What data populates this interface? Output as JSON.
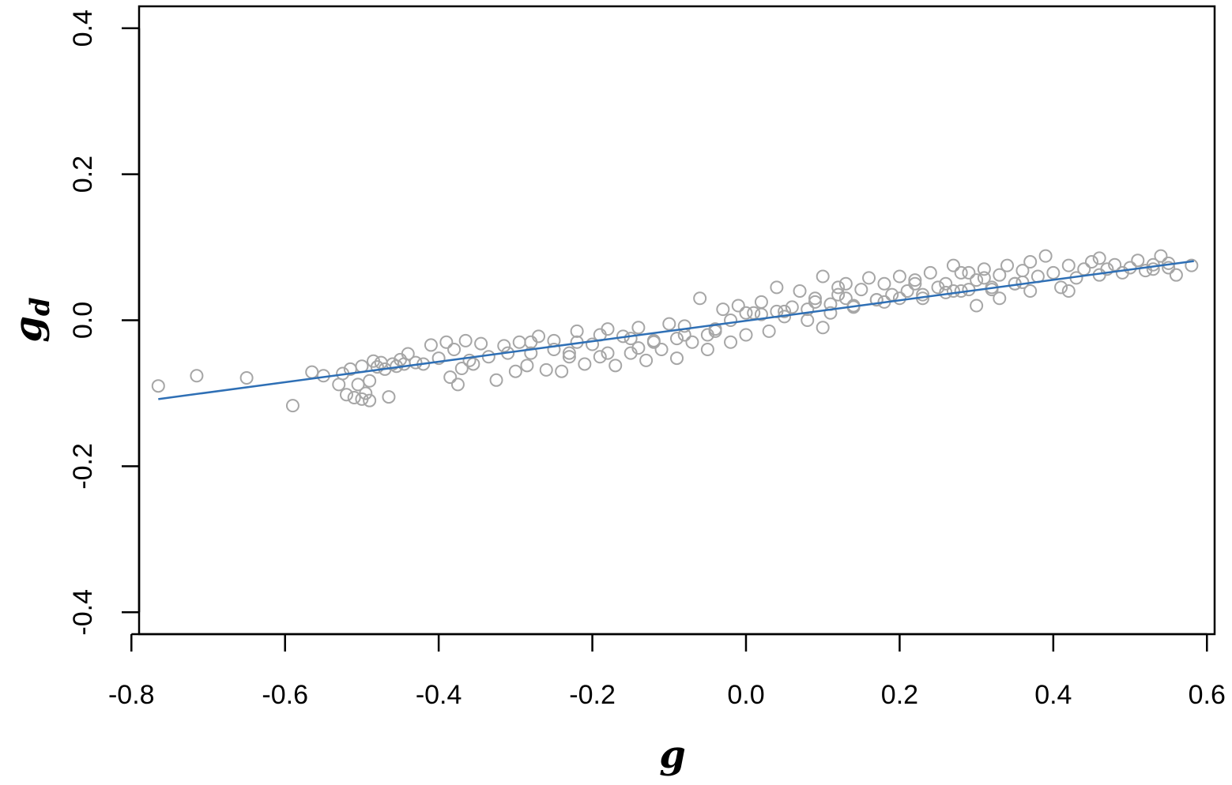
{
  "chart_data": {
    "type": "scatter",
    "title": "",
    "xlabel": "g",
    "ylabel_main": "g",
    "ylabel_sub": "d",
    "xlim": [
      -0.79,
      0.61
    ],
    "ylim": [
      -0.43,
      0.43
    ],
    "x_ticks": [
      -0.8,
      -0.6,
      -0.4,
      -0.2,
      0.0,
      0.2,
      0.4,
      0.6
    ],
    "x_tick_labels": [
      "-0.8",
      "-0.6",
      "-0.4",
      "-0.2",
      "0.0",
      "0.2",
      "0.4",
      "0.6"
    ],
    "y_ticks": [
      -0.4,
      -0.2,
      0.0,
      0.2,
      0.4
    ],
    "y_tick_labels": [
      "-0.4",
      "-0.2",
      "0.0",
      "0.2",
      "0.4"
    ],
    "grid": false,
    "legend": "none",
    "point_color": "#a6a6a6",
    "line_color": "#2e6fb5",
    "series": [
      {
        "kind": "points",
        "x": [
          -0.765,
          -0.715,
          -0.65,
          -0.59,
          -0.565,
          -0.55,
          -0.53,
          -0.525,
          -0.52,
          -0.515,
          -0.51,
          -0.505,
          -0.5,
          -0.5,
          -0.495,
          -0.49,
          -0.49,
          -0.485,
          -0.48,
          -0.475,
          -0.47,
          -0.465,
          -0.46,
          -0.455,
          -0.45,
          -0.445,
          -0.44,
          -0.43,
          -0.42,
          -0.41,
          -0.4,
          -0.39,
          -0.385,
          -0.38,
          -0.375,
          -0.37,
          -0.365,
          -0.36,
          -0.355,
          -0.345,
          -0.335,
          -0.325,
          -0.315,
          -0.31,
          -0.3,
          -0.295,
          -0.285,
          -0.28,
          -0.27,
          -0.26,
          -0.25,
          -0.24,
          -0.23,
          -0.22,
          -0.21,
          -0.2,
          -0.19,
          -0.18,
          -0.17,
          -0.16,
          -0.15,
          -0.14,
          -0.13,
          -0.12,
          -0.11,
          -0.1,
          -0.09,
          -0.08,
          -0.07,
          -0.06,
          -0.05,
          -0.04,
          -0.03,
          -0.02,
          -0.01,
          0.0,
          0.01,
          0.02,
          0.03,
          0.04,
          0.05,
          0.06,
          0.07,
          0.08,
          0.09,
          0.1,
          0.11,
          0.12,
          0.13,
          0.14,
          0.15,
          0.16,
          0.17,
          0.18,
          0.19,
          0.2,
          0.21,
          0.22,
          0.23,
          0.24,
          0.25,
          0.26,
          0.27,
          0.28,
          0.29,
          0.3,
          0.31,
          0.32,
          0.33,
          0.34,
          0.35,
          0.36,
          0.37,
          0.38,
          0.39,
          0.4,
          0.41,
          0.42,
          0.43,
          0.44,
          0.45,
          0.46,
          0.47,
          0.48,
          0.49,
          0.5,
          0.51,
          0.52,
          0.53,
          0.54,
          0.55,
          0.56,
          0.58,
          -0.25,
          -0.22,
          -0.18,
          -0.15,
          -0.12,
          -0.08,
          -0.05,
          -0.02,
          0.02,
          0.05,
          0.08,
          0.11,
          0.14,
          0.17,
          0.2,
          0.23,
          0.26,
          0.29,
          0.32,
          0.35,
          -0.28,
          -0.23,
          -0.19,
          -0.14,
          -0.09,
          -0.04,
          0.0,
          0.04,
          0.09,
          0.13,
          0.18,
          0.22,
          0.27,
          0.31,
          0.36,
          0.1,
          0.12,
          0.3,
          0.28,
          0.42,
          0.46,
          0.53,
          0.55,
          0.33,
          0.37
        ],
        "y": [
          -0.09,
          -0.076,
          -0.079,
          -0.117,
          -0.071,
          -0.076,
          -0.088,
          -0.073,
          -0.102,
          -0.067,
          -0.106,
          -0.088,
          -0.108,
          -0.063,
          -0.1,
          -0.083,
          -0.11,
          -0.056,
          -0.064,
          -0.058,
          -0.067,
          -0.105,
          -0.06,
          -0.063,
          -0.054,
          -0.06,
          -0.046,
          -0.058,
          -0.06,
          -0.034,
          -0.052,
          -0.03,
          -0.078,
          -0.04,
          -0.088,
          -0.066,
          -0.028,
          -0.055,
          -0.06,
          -0.032,
          -0.05,
          -0.082,
          -0.035,
          -0.045,
          -0.07,
          -0.03,
          -0.062,
          -0.045,
          -0.022,
          -0.068,
          -0.028,
          -0.07,
          -0.045,
          -0.015,
          -0.06,
          -0.033,
          -0.05,
          -0.012,
          -0.062,
          -0.022,
          -0.045,
          -0.01,
          -0.055,
          -0.028,
          -0.04,
          -0.005,
          -0.052,
          -0.02,
          -0.03,
          0.03,
          -0.04,
          -0.012,
          0.015,
          -0.03,
          0.02,
          -0.02,
          0.01,
          0.025,
          -0.015,
          0.045,
          0.005,
          0.018,
          0.04,
          0.0,
          0.03,
          0.06,
          0.01,
          0.035,
          0.05,
          0.018,
          0.042,
          0.058,
          0.028,
          0.05,
          0.035,
          0.06,
          0.04,
          0.055,
          0.03,
          0.065,
          0.045,
          0.05,
          0.075,
          0.04,
          0.065,
          0.055,
          0.07,
          0.042,
          0.062,
          0.075,
          0.05,
          0.068,
          0.04,
          0.06,
          0.088,
          0.065,
          0.045,
          0.075,
          0.058,
          0.07,
          0.08,
          0.062,
          0.07,
          0.076,
          0.065,
          0.072,
          0.082,
          0.068,
          0.076,
          0.088,
          0.072,
          0.062,
          0.075,
          -0.04,
          -0.03,
          -0.045,
          -0.025,
          -0.03,
          -0.008,
          -0.02,
          0.0,
          0.008,
          0.012,
          0.015,
          0.022,
          0.02,
          0.028,
          0.03,
          0.035,
          0.038,
          0.042,
          0.045,
          0.05,
          -0.03,
          -0.05,
          -0.02,
          -0.038,
          -0.025,
          -0.015,
          0.01,
          0.012,
          0.025,
          0.03,
          0.025,
          0.05,
          0.04,
          0.058,
          0.052,
          -0.01,
          0.045,
          0.02,
          0.065,
          0.04,
          0.085,
          0.07,
          0.078,
          0.03,
          0.08
        ]
      },
      {
        "kind": "line",
        "x": [
          -0.765,
          0.583
        ],
        "y": [
          -0.108,
          0.081
        ]
      }
    ]
  }
}
